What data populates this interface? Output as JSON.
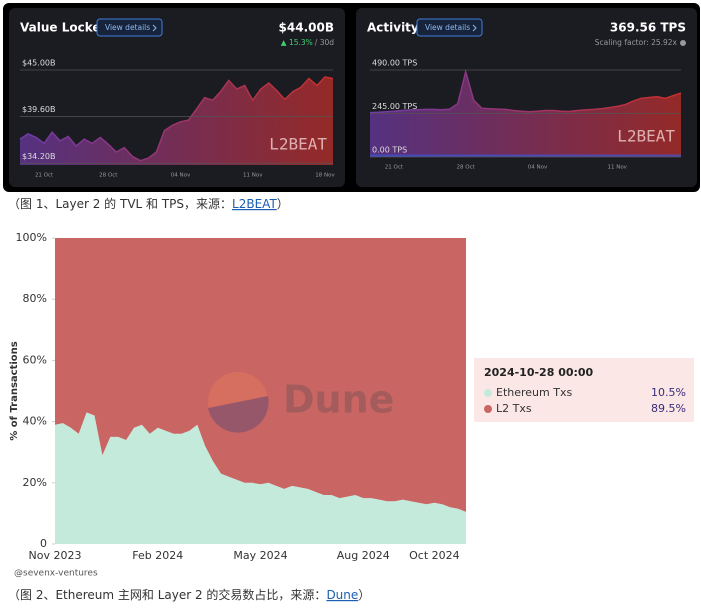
{
  "chart_data": [
    {
      "type": "area",
      "title": "Value Locked",
      "button": "View details",
      "headline": "$44.00B",
      "change": "▲ 15.3%",
      "change_period": "/ 30d",
      "watermark": "L2BEAT",
      "categories": [
        null,
        null,
        null,
        "21 Oct",
        null,
        null,
        null,
        null,
        null,
        null,
        null,
        "28 Oct",
        null,
        null,
        null,
        null,
        null,
        null,
        null,
        null,
        "04 Nov",
        null,
        null,
        null,
        null,
        null,
        null,
        null,
        null,
        "11 Nov",
        null,
        null,
        null,
        null,
        null,
        null,
        null,
        null,
        "18 Nov",
        null
      ],
      "series": [
        {
          "colors": [
            "#6e3ba8",
            "#c8302a"
          ],
          "values": [
            37,
            37.6,
            37.2,
            36.5,
            37.8,
            36.8,
            37.3,
            36.2,
            37,
            36.5,
            37.2,
            36.4,
            35.5,
            36,
            35,
            34.5,
            34.8,
            35.5,
            38,
            38.6,
            39,
            39.2,
            40.5,
            41.8,
            41.5,
            42.5,
            43.8,
            42.8,
            43.2,
            41.5,
            42.8,
            43.5,
            42.6,
            41.6,
            42.5,
            43,
            44,
            43.2,
            44.2,
            44
          ]
        }
      ],
      "ylim": [
        34,
        45
      ],
      "yticks": [
        {
          "value": 34.2,
          "label": "$34.20B"
        },
        {
          "value": 39.6,
          "label": "$39.60B"
        },
        {
          "value": 45,
          "label": "$45.00B"
        }
      ],
      "grid": true
    },
    {
      "type": "area",
      "title": "Activity",
      "button": "View details",
      "headline": "369.56 TPS",
      "subtitle": "Scaling factor: 25.92x",
      "watermark": "L2BEAT",
      "categories": [
        null,
        null,
        null,
        "21 Oct",
        null,
        null,
        null,
        null,
        null,
        null,
        null,
        null,
        "28 Oct",
        null,
        null,
        null,
        null,
        null,
        null,
        null,
        null,
        "04 Nov",
        null,
        null,
        null,
        null,
        null,
        null,
        null,
        null,
        null,
        "11 Nov",
        null,
        null,
        null,
        null,
        null,
        null,
        null,
        null
      ],
      "series": [
        {
          "colors": [
            "#6e3ba8",
            "#c8302a"
          ],
          "values": [
            250,
            252,
            255,
            258,
            262,
            265,
            266,
            268,
            268,
            266,
            270,
            300,
            480,
            320,
            275,
            272,
            270,
            268,
            262,
            258,
            255,
            258,
            262,
            262,
            258,
            256,
            262,
            265,
            268,
            272,
            278,
            285,
            295,
            315,
            330,
            335,
            340,
            330,
            345,
            360
          ]
        },
        {
          "colors": [
            "#3b55d6",
            "#3b55d6"
          ],
          "values": [
            14,
            14,
            14,
            14,
            14,
            14,
            14,
            14,
            14,
            14,
            14,
            14,
            14,
            14,
            14,
            14,
            14,
            14,
            14,
            14,
            14,
            14,
            14,
            14,
            14,
            14,
            14,
            14,
            14,
            14,
            14,
            14,
            14,
            14,
            14,
            14,
            14,
            14,
            14,
            14
          ]
        }
      ],
      "ylim": [
        0,
        490
      ],
      "yticks": [
        {
          "value": 0,
          "label": "0.00 TPS"
        },
        {
          "value": 245,
          "label": "245.00 TPS"
        },
        {
          "value": 490,
          "label": "490.00 TPS"
        }
      ],
      "grid": true
    },
    {
      "type": "stacked_area",
      "y_label": "% of Transactions",
      "watermark": "Dune",
      "credit": "@sevenx-ventures",
      "categories": [
        "Nov 2023",
        null,
        null,
        null,
        null,
        null,
        null,
        null,
        null,
        null,
        null,
        null,
        null,
        "Feb 2024",
        null,
        null,
        null,
        null,
        null,
        null,
        null,
        null,
        null,
        null,
        null,
        null,
        "May 2024",
        null,
        null,
        null,
        null,
        null,
        null,
        null,
        null,
        null,
        null,
        null,
        null,
        "Aug 2024",
        null,
        null,
        null,
        null,
        null,
        null,
        null,
        null,
        "Oct 2024",
        null,
        null,
        null,
        null
      ],
      "series": [
        {
          "name": "Ethereum Txs",
          "color": "#c4eadc",
          "values": [
            39,
            39.5,
            38,
            36,
            43,
            42,
            29,
            35,
            35,
            34,
            38,
            39,
            36,
            38,
            37,
            36,
            36,
            37,
            39,
            32,
            27,
            23,
            22,
            21,
            20,
            20,
            19.5,
            20,
            19,
            18,
            19,
            18.5,
            18,
            17,
            16,
            16,
            15,
            15.5,
            16,
            15,
            15,
            14.5,
            14,
            14,
            14.5,
            14,
            13.5,
            13,
            13.5,
            13,
            12,
            11.5,
            10.5
          ]
        },
        {
          "name": "L2 Txs",
          "color": "#c96563",
          "values": [
            61,
            60.5,
            62,
            64,
            57,
            58,
            71,
            65,
            65,
            66,
            62,
            61,
            64,
            62,
            63,
            64,
            64,
            63,
            61,
            68,
            73,
            77,
            78,
            79,
            80,
            80,
            80.5,
            80,
            81,
            82,
            81,
            81.5,
            82,
            83,
            84,
            84,
            85,
            84.5,
            84,
            85,
            85,
            85.5,
            86,
            86,
            85.5,
            86,
            86.5,
            87,
            86.5,
            87,
            88,
            88.5,
            89.5
          ]
        }
      ],
      "ylim": [
        0,
        100
      ],
      "yticks": [
        0,
        {
          "value": 20,
          "label": "20%"
        },
        {
          "value": 40,
          "label": "40%"
        },
        {
          "value": 60,
          "label": "60%"
        },
        {
          "value": 80,
          "label": "80%"
        },
        {
          "value": 100,
          "label": "100%"
        }
      ],
      "tooltip": {
        "title": "2024-10-28 00:00",
        "values": [
          10.5,
          89.5
        ],
        "value_labels": [
          "10.5%",
          "89.5%"
        ]
      }
    }
  ],
  "captions": [
    {
      "text": "（图 1、Layer 2 的 TVL 和 TPS，来源：",
      "link": "L2BEAT",
      "end": "）"
    },
    {
      "text": "（图 2、Ethereum 主网和 Layer 2 的交易数占比，来源：",
      "link": "Dune",
      "end": "）"
    }
  ]
}
